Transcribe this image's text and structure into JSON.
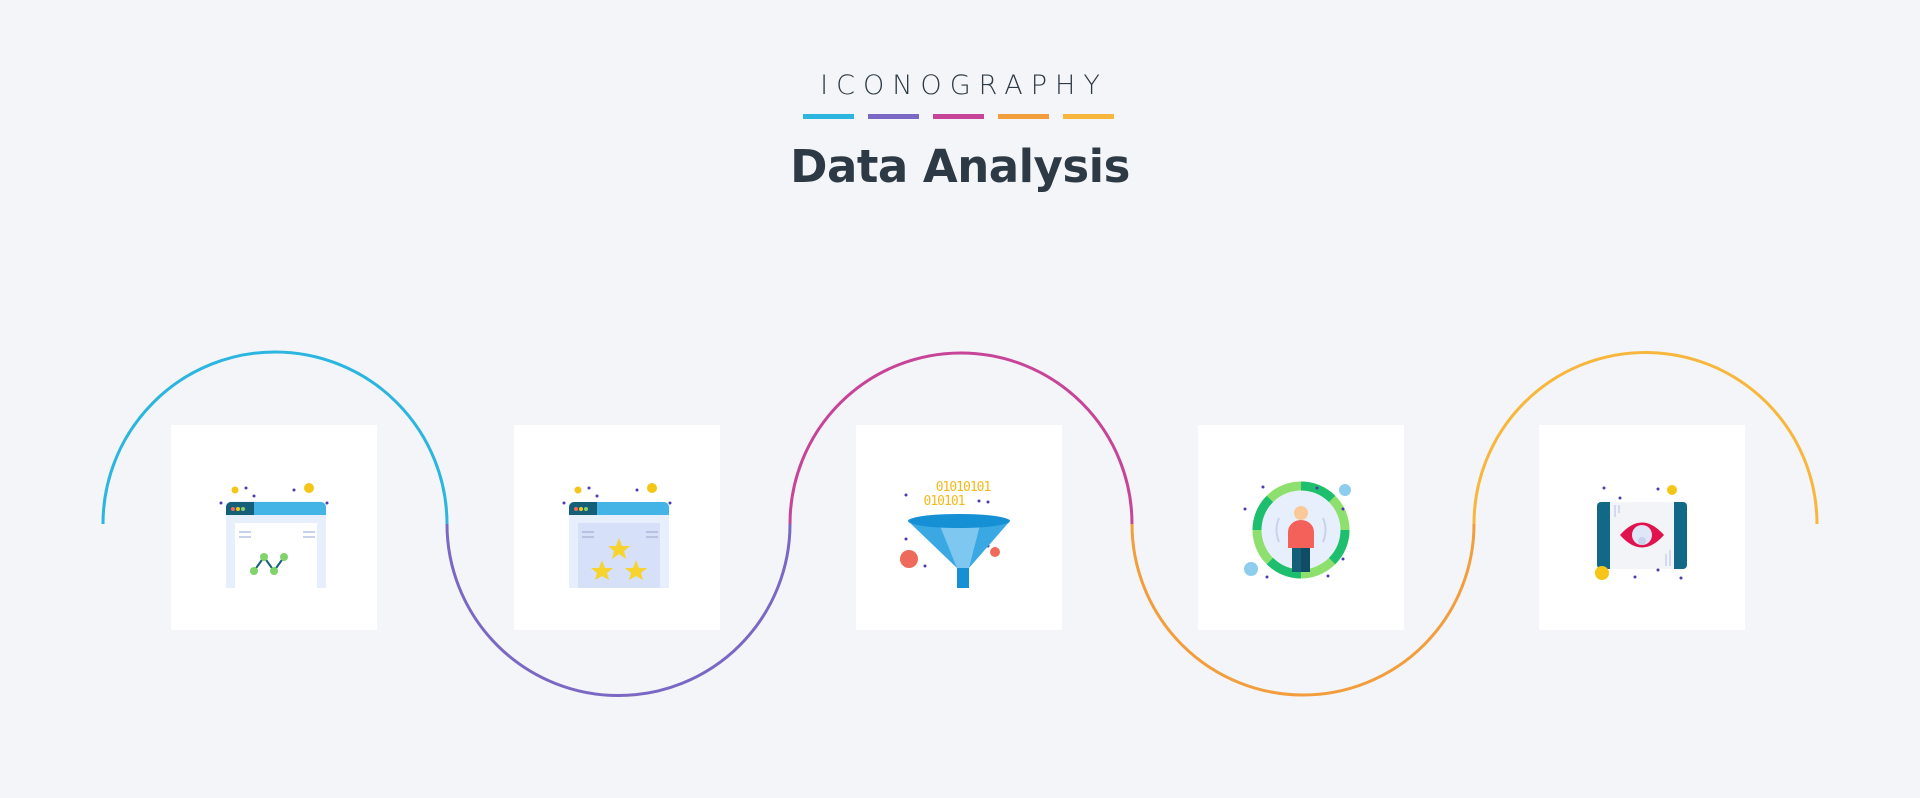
{
  "header": {
    "brand": "ICONOGRAPHY",
    "title": "Data Analysis"
  },
  "colors": {
    "cyan": "#2bb5df",
    "purple": "#7b68c4",
    "magenta": "#c74598",
    "orange": "#f29e3c",
    "yellow": "#f7b73d",
    "background": "#f4f5f8"
  },
  "icons": [
    {
      "name": "browser-line-chart-icon"
    },
    {
      "name": "browser-star-rating-icon"
    },
    {
      "name": "data-funnel-icon",
      "binary_lines": [
        "01010101",
        "010101"
      ]
    },
    {
      "name": "user-target-icon"
    },
    {
      "name": "mobile-eye-view-icon"
    }
  ]
}
